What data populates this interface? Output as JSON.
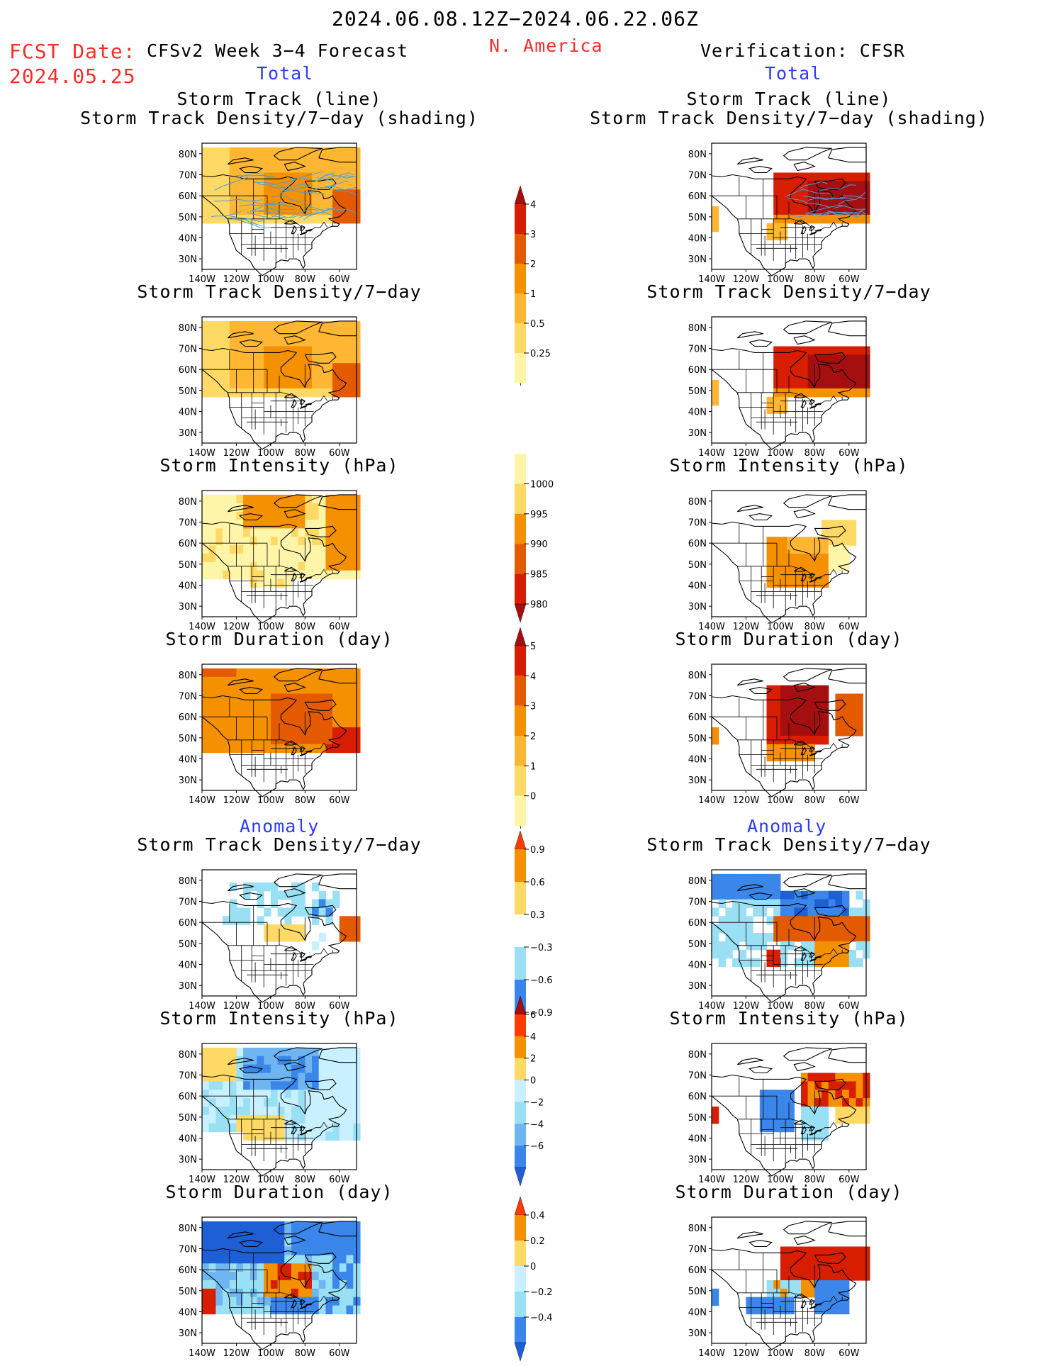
{
  "header": {
    "period": "2024.06.08.12Z−2024.06.22.06Z",
    "fcst_label": "FCST Date:",
    "fcst_date": "2024.05.25",
    "model": "CFSv2 Week 3−4 Forecast",
    "region": "N. America",
    "verification": "Verification: CFSR",
    "total_left": "Total",
    "total_right": "Total",
    "anomaly_left": "Anomaly",
    "anomaly_right": "Anomaly"
  },
  "colors": {
    "yellow_light": "#fff5a8",
    "yellow": "#ffd966",
    "orange_light": "#ffb733",
    "orange": "#f59000",
    "orange_dark": "#e35a00",
    "red": "#d71e00",
    "dark_red": "#a50f0f",
    "cyan_light": "#c8f0ff",
    "cyan": "#9ae0f5",
    "blue_light": "#6fb5f2",
    "blue": "#3a86ea",
    "blue_dark": "#1f5fd6",
    "track_line": "#4a9fd8"
  },
  "chart_data": [
    {
      "id": "p1",
      "column": "forecast",
      "section": "total",
      "type": "heatmap",
      "title_lines": [
        "Storm Track (line)",
        "Storm Track Density/7−day (shading)"
      ],
      "field": "storm_track_density",
      "colorbar": "cb1",
      "track_lines": true
    },
    {
      "id": "p2",
      "column": "forecast",
      "section": "total",
      "type": "heatmap",
      "title_lines": [
        "Storm Track Density/7−day"
      ],
      "field": "storm_track_density",
      "colorbar": "cb1"
    },
    {
      "id": "p3",
      "column": "forecast",
      "section": "total",
      "type": "heatmap",
      "title_lines": [
        "Storm Intensity (hPa)"
      ],
      "field": "storm_intensity",
      "colorbar": "cb2"
    },
    {
      "id": "p4",
      "column": "forecast",
      "section": "total",
      "type": "heatmap",
      "title_lines": [
        "Storm Duration (day)"
      ],
      "field": "storm_duration",
      "colorbar": "cb3"
    },
    {
      "id": "p5",
      "column": "forecast",
      "section": "anomaly",
      "type": "heatmap",
      "title_lines": [
        "Storm Track Density/7−day"
      ],
      "field": "storm_track_density_anomaly",
      "colorbar": "cb4"
    },
    {
      "id": "p6",
      "column": "forecast",
      "section": "anomaly",
      "type": "heatmap",
      "title_lines": [
        "Storm Intensity (hPa)"
      ],
      "field": "storm_intensity_anomaly",
      "colorbar": "cb5"
    },
    {
      "id": "p7",
      "column": "forecast",
      "section": "anomaly",
      "type": "heatmap",
      "title_lines": [
        "Storm Duration (day)"
      ],
      "field": "storm_duration_anomaly",
      "colorbar": "cb6"
    },
    {
      "id": "p8",
      "column": "verification",
      "section": "total",
      "type": "heatmap",
      "title_lines": [
        "Storm Track (line)",
        "Storm Track Density/7−day (shading)"
      ],
      "field": "storm_track_density",
      "colorbar": "cb1",
      "track_lines": true
    },
    {
      "id": "p9",
      "column": "verification",
      "section": "total",
      "type": "heatmap",
      "title_lines": [
        "Storm Track Density/7−day"
      ],
      "field": "storm_track_density",
      "colorbar": "cb1"
    },
    {
      "id": "p10",
      "column": "verification",
      "section": "total",
      "type": "heatmap",
      "title_lines": [
        "Storm Intensity (hPa)"
      ],
      "field": "storm_intensity",
      "colorbar": "cb2"
    },
    {
      "id": "p11",
      "column": "verification",
      "section": "total",
      "type": "heatmap",
      "title_lines": [
        "Storm Duration (day)"
      ],
      "field": "storm_duration",
      "colorbar": "cb3"
    },
    {
      "id": "p12",
      "column": "verification",
      "section": "anomaly",
      "type": "heatmap",
      "title_lines": [
        "Storm Track Density/7−day"
      ],
      "field": "storm_track_density_anomaly",
      "colorbar": "cb4"
    },
    {
      "id": "p13",
      "column": "verification",
      "section": "anomaly",
      "type": "heatmap",
      "title_lines": [
        "Storm Intensity (hPa)"
      ],
      "field": "storm_intensity_anomaly",
      "colorbar": "cb5"
    },
    {
      "id": "p14",
      "column": "verification",
      "section": "anomaly",
      "type": "heatmap",
      "title_lines": [
        "Storm Duration (day)"
      ],
      "field": "storm_duration_anomaly",
      "colorbar": "cb6"
    }
  ],
  "map_axes": {
    "x_ticks": [
      "140W",
      "120W",
      "100W",
      "80W",
      "60W"
    ],
    "y_ticks": [
      "80N",
      "70N",
      "60N",
      "50N",
      "40N",
      "30N"
    ],
    "xlim": [
      -140,
      -50
    ],
    "ylim": [
      25,
      85
    ]
  },
  "colorbars": {
    "cb1": {
      "labels": [
        "4",
        "3",
        "2",
        "1",
        "0.5",
        "0.25"
      ],
      "colors": [
        "#a50f0f",
        "#d71e00",
        "#e35a00",
        "#f59000",
        "#ffb733",
        "#ffd966",
        "#fff5a8"
      ],
      "extend": "max"
    },
    "cb2": {
      "labels": [
        "1000",
        "995",
        "990",
        "985",
        "980"
      ],
      "colors": [
        "#fff5a8",
        "#ffd966",
        "#f59000",
        "#e35a00",
        "#d71e00",
        "#a50f0f"
      ],
      "extend": "min"
    },
    "cb3": {
      "labels": [
        "5",
        "4",
        "3",
        "2",
        "1",
        "0"
      ],
      "colors": [
        "#a50f0f",
        "#d71e00",
        "#e35a00",
        "#f59000",
        "#ffb733",
        "#ffd966",
        "#fff5a8"
      ],
      "extend": "max"
    },
    "cb4": {
      "labels": [
        "0.9",
        "0.6",
        "0.3",
        "−0.3",
        "−0.6",
        "−0.9"
      ],
      "colors": [
        "#ff3b00",
        "#f59000",
        "#ffd966",
        "#ffffff",
        "#9ae0f5",
        "#3a86ea",
        "#1f5fd6"
      ],
      "extend": "both"
    },
    "cb5": {
      "labels": [
        "6",
        "4",
        "2",
        "0",
        "−2",
        "−4",
        "−6"
      ],
      "colors": [
        "#a50f0f",
        "#ff3b00",
        "#f59000",
        "#ffd966",
        "#c8f0ff",
        "#9ae0f5",
        "#6fb5f2",
        "#3a86ea",
        "#1f5fd6"
      ],
      "extend": "both"
    },
    "cb6": {
      "labels": [
        "0.4",
        "0.2",
        "0",
        "−0.2",
        "−0.4"
      ],
      "colors": [
        "#ff3b00",
        "#f59000",
        "#ffd966",
        "#c8f0ff",
        "#9ae0f5",
        "#3a86ea",
        "#1f5fd6"
      ],
      "extend": "both"
    }
  }
}
